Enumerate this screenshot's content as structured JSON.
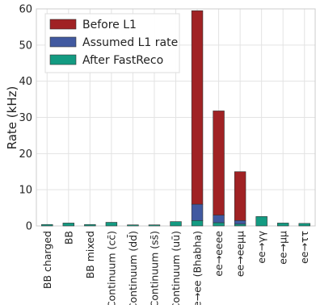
{
  "chart_data": {
    "type": "bar",
    "stacked": true,
    "ylabel": "Rate (kHz)",
    "xlabel": "",
    "ylim": [
      0,
      60
    ],
    "yticks": [
      0,
      10,
      20,
      30,
      40,
      50,
      60
    ],
    "grid": true,
    "legend_position": "top-left",
    "categories": [
      "BB charged",
      "BB",
      "BB mixed",
      "Continuum (cc̄)",
      "Continuum (dd̄)",
      "Continuum (ss̄)",
      "Continuum (uū)",
      "ee→ee (Bhabha)",
      "ee→eeee",
      "ee→eeμμ",
      "ee→γγ",
      "ee→μμ",
      "ee→ττ"
    ],
    "category_colors": [
      "#222222",
      "#222222",
      "#222222",
      "#222222",
      "#222222",
      "#222222",
      "#222222",
      "#222222",
      "#d62728",
      "#d62728",
      "#222222",
      "#222222",
      "#222222"
    ],
    "series": [
      {
        "name": "After FastReco",
        "color": "#139b82",
        "values": [
          0.4,
          0.8,
          0.4,
          1.0,
          0.3,
          0.3,
          1.2,
          1.5,
          0.9,
          0.5,
          2.6,
          0.8,
          0.7
        ]
      },
      {
        "name": "Assumed L1 rate",
        "color": "#4159a0",
        "values": [
          0.0,
          0.0,
          0.0,
          0.0,
          0.0,
          0.0,
          0.0,
          4.5,
          2.1,
          1.0,
          0.0,
          0.0,
          0.0
        ]
      },
      {
        "name": "Before L1",
        "color": "#a02224",
        "values": [
          0.0,
          0.0,
          0.0,
          0.0,
          0.0,
          0.0,
          0.0,
          53.5,
          28.8,
          13.5,
          0.0,
          0.0,
          0.0
        ]
      }
    ],
    "legend_order": [
      "Before L1",
      "Assumed L1 rate",
      "After FastReco"
    ]
  }
}
